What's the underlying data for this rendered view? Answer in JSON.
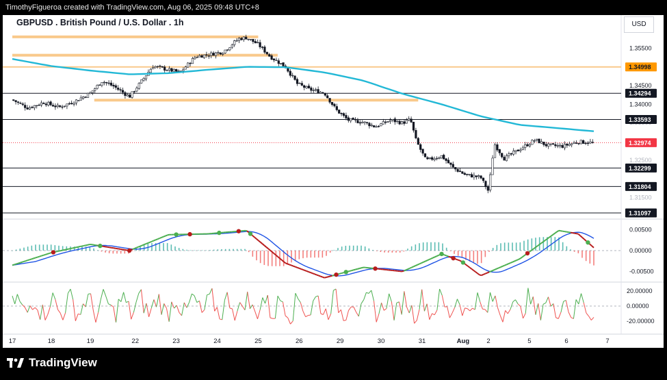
{
  "header": {
    "attribution": "TimothyFigueroa created with TradingView.com, Aug 06, 2025 09:48 UTC+8"
  },
  "symbol": {
    "title": "GBPUSD . British Pound / U.S. Dollar . 1h",
    "currency": "USD"
  },
  "footer": {
    "brand": "TradingView"
  },
  "colors": {
    "ma": "#22b8d6",
    "zone": "#f9c98b",
    "bull_candle": "#26a69a",
    "bear_candle": "#ef5350",
    "macd_signal": "#1e53e5",
    "macd_line_up": "#4caf50",
    "macd_line_down": "#b71c1c",
    "rsi_up": "#4caf50",
    "rsi_down": "#ef5350",
    "price_tag": "#f23645",
    "orange_tag": "#ff9800"
  },
  "price_axis": {
    "ticks": [
      "1.35500",
      "1.34500",
      "1.34000"
    ],
    "partial_ticks": [
      "1.36000",
      "1.33500",
      "1.32500",
      "1.31500",
      "1.31000"
    ],
    "levels": [
      {
        "label": "1.34998",
        "value": 1.34998,
        "style": "orange-line"
      },
      {
        "label": "1.34294",
        "value": 1.34294,
        "style": "black-line"
      },
      {
        "label": "1.33593",
        "value": 1.33593,
        "style": "black-line"
      },
      {
        "label": "1.32974",
        "value": 1.32974,
        "style": "current-price"
      },
      {
        "label": "1.32299",
        "value": 1.32299,
        "style": "black-line"
      },
      {
        "label": "1.31804",
        "value": 1.31804,
        "style": "black-line"
      },
      {
        "label": "1.31097",
        "value": 1.31097,
        "style": "black-line"
      }
    ],
    "zones": [
      {
        "from_day": 0,
        "to_day": 6.3,
        "value": 1.358
      },
      {
        "from_day": 0,
        "to_day": 6.8,
        "value": 1.3531
      },
      {
        "from_day": 2.1,
        "to_day": 10.4,
        "value": 1.3411
      }
    ]
  },
  "macd_axis": {
    "ticks": [
      "0.00500",
      "0.00000",
      "-0.00500"
    ]
  },
  "rsi_axis": {
    "ticks": [
      "20.00000",
      "0.00000",
      "-20.00000"
    ]
  },
  "time_axis": {
    "labels": [
      "17",
      "18",
      "19",
      "22",
      "23",
      "24",
      "25",
      "26",
      "29",
      "30",
      "31",
      "Aug",
      "2",
      "5",
      "6",
      "7"
    ]
  },
  "chart_data": {
    "type": "candlestick",
    "symbol": "GBPUSD",
    "interval": "1h",
    "price_ylim": [
      1.3097,
      1.3598
    ],
    "close_path": [
      [
        0,
        1.3412
      ],
      [
        0.4,
        1.339
      ],
      [
        0.8,
        1.3405
      ],
      [
        1.2,
        1.3392
      ],
      [
        1.6,
        1.3408
      ],
      [
        2,
        1.343
      ],
      [
        2.3,
        1.3462
      ],
      [
        2.6,
        1.3448
      ],
      [
        3,
        1.342
      ],
      [
        3.3,
        1.346
      ],
      [
        3.6,
        1.3502
      ],
      [
        4,
        1.3492
      ],
      [
        4.3,
        1.3485
      ],
      [
        4.7,
        1.3528
      ],
      [
        5,
        1.3532
      ],
      [
        5.4,
        1.354
      ],
      [
        5.8,
        1.3575
      ],
      [
        6,
        1.3578
      ],
      [
        6.3,
        1.356
      ],
      [
        6.6,
        1.3528
      ],
      [
        7,
        1.35
      ],
      [
        7.3,
        1.3455
      ],
      [
        7.6,
        1.344
      ],
      [
        8,
        1.343
      ],
      [
        8.3,
        1.3385
      ],
      [
        8.6,
        1.3358
      ],
      [
        9,
        1.3352
      ],
      [
        9.3,
        1.334
      ],
      [
        9.7,
        1.3358
      ],
      [
        10,
        1.335
      ],
      [
        10.2,
        1.336
      ],
      [
        10.35,
        1.3302
      ],
      [
        10.6,
        1.325
      ],
      [
        11,
        1.3262
      ],
      [
        11.3,
        1.323
      ],
      [
        11.6,
        1.3212
      ],
      [
        12,
        1.3205
      ],
      [
        12.2,
        1.3168
      ],
      [
        12.35,
        1.3295
      ],
      [
        12.6,
        1.3255
      ],
      [
        13,
        1.328
      ],
      [
        13.4,
        1.3305
      ],
      [
        13.7,
        1.329
      ],
      [
        14.1,
        1.3288
      ],
      [
        14.5,
        1.33
      ],
      [
        14.9,
        1.3297
      ]
    ],
    "ma_path": [
      [
        0,
        1.3521
      ],
      [
        1,
        1.3502
      ],
      [
        2,
        1.349
      ],
      [
        3,
        1.348
      ],
      [
        4,
        1.3483
      ],
      [
        5,
        1.3492
      ],
      [
        6,
        1.35
      ],
      [
        7,
        1.3499
      ],
      [
        8,
        1.3485
      ],
      [
        9,
        1.3463
      ],
      [
        10,
        1.3428
      ],
      [
        11,
        1.34
      ],
      [
        12,
        1.3368
      ],
      [
        13,
        1.3345
      ],
      [
        14,
        1.3336
      ],
      [
        14.9,
        1.3328
      ]
    ],
    "macd_ylim": [
      -0.0072,
      0.0072
    ],
    "macd_line": [
      [
        0,
        -0.0035
      ],
      [
        1,
        -0.0005
      ],
      [
        2,
        0.0015
      ],
      [
        3,
        0.0
      ],
      [
        4,
        0.0038
      ],
      [
        5,
        0.004
      ],
      [
        6,
        0.0048
      ],
      [
        7,
        -0.003
      ],
      [
        8,
        -0.0065
      ],
      [
        9,
        -0.004
      ],
      [
        10,
        -0.005
      ],
      [
        11,
        -0.0008
      ],
      [
        11.5,
        -0.0025
      ],
      [
        12,
        -0.006
      ],
      [
        13,
        -0.002
      ],
      [
        14,
        0.0048
      ],
      [
        14.5,
        0.004
      ],
      [
        14.9,
        0.0007
      ]
    ],
    "rsi_ylim": [
      -30,
      30
    ]
  }
}
